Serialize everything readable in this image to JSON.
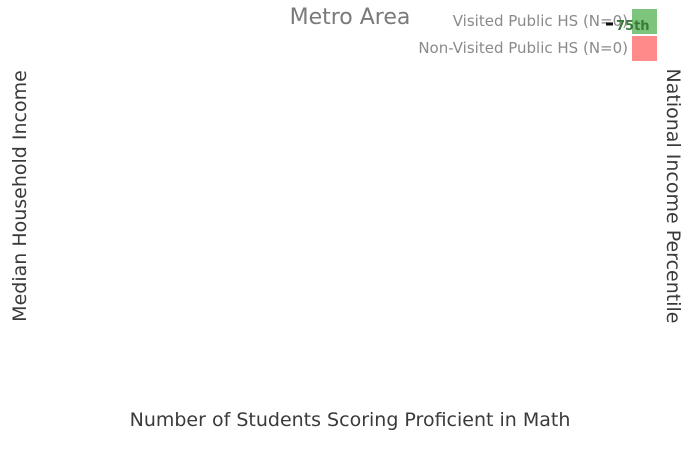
{
  "chart_data": {
    "type": "scatter",
    "title": "Metro Area",
    "xlabel": "Number of Students Scoring Proficient in Math",
    "ylabel": "Median Household Income",
    "y2label": "National Income Percentile",
    "legend_position": "top-right",
    "grid": false,
    "series": [
      {
        "name": "Visited Public HS (N=0)",
        "color": "#7dc47d",
        "points": []
      },
      {
        "name": "Non-Visited Public HS (N=0)",
        "color": "#ff8a8a",
        "points": []
      }
    ],
    "annotations": [
      {
        "text": "75th",
        "color": "#3a7a3a"
      }
    ]
  }
}
